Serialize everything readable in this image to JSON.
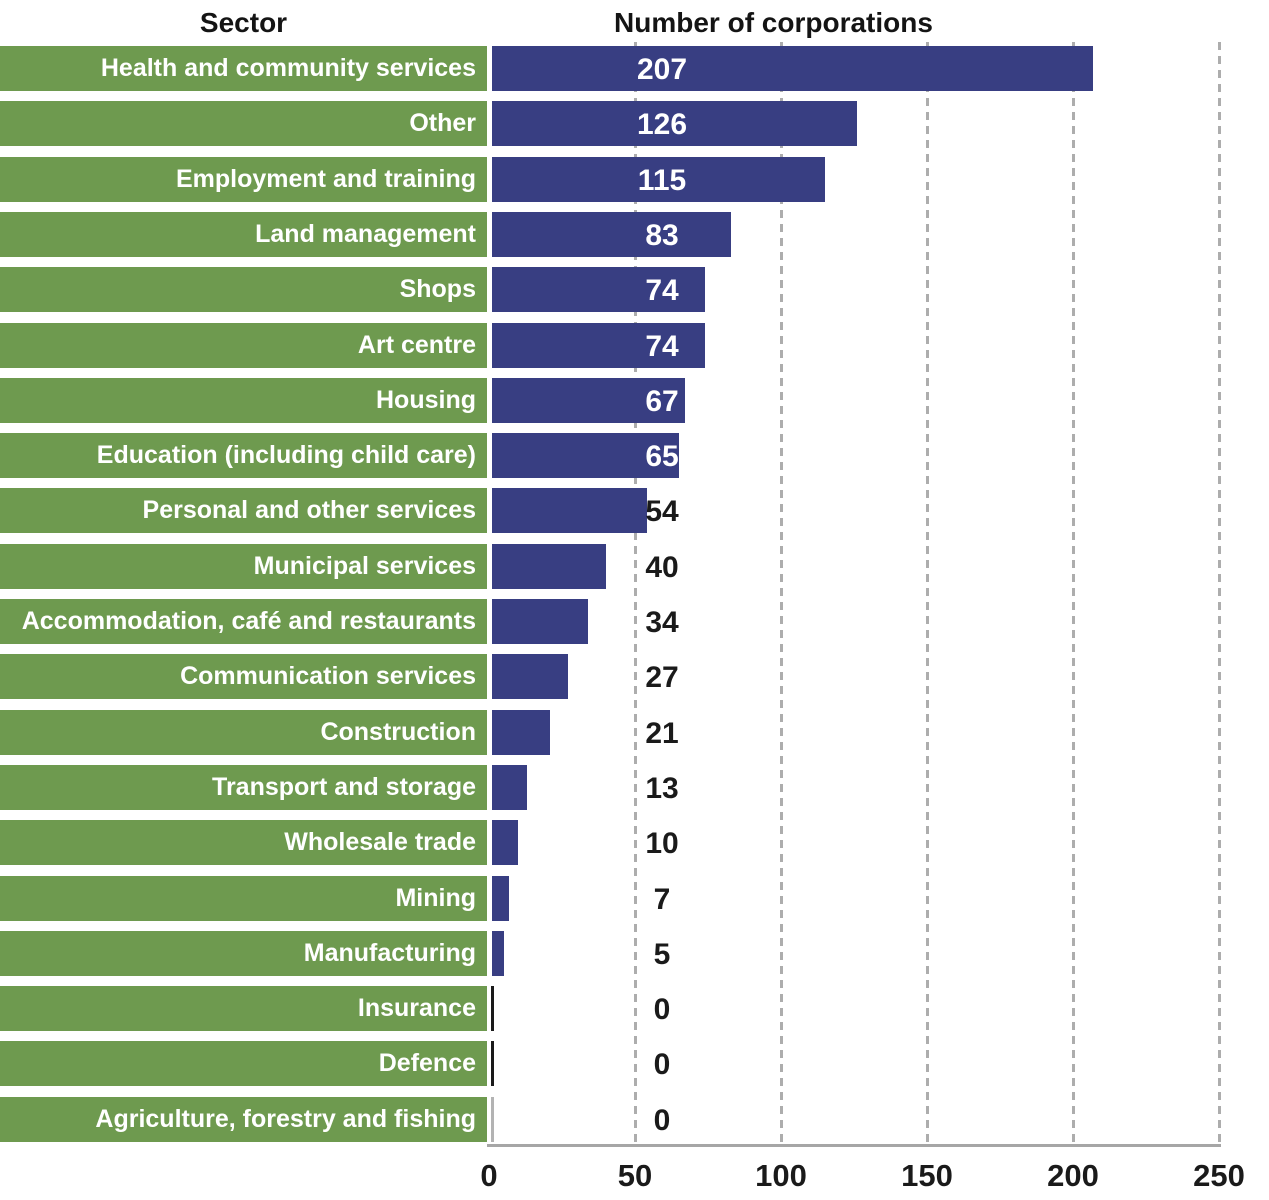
{
  "chart_data": {
    "type": "bar",
    "orientation": "horizontal",
    "column_headers": {
      "sector": "Sector",
      "values": "Number of corporations"
    },
    "xlabel": "",
    "ylabel": "",
    "xlim": [
      0,
      250
    ],
    "x_ticks": [
      0,
      50,
      100,
      150,
      200,
      250
    ],
    "grid": "vertical dashed gridlines at each tick except 0",
    "legend": "none",
    "rows": [
      {
        "label": "Health and community services",
        "value": 207
      },
      {
        "label": "Other",
        "value": 126
      },
      {
        "label": "Employment and training",
        "value": 115
      },
      {
        "label": "Land management",
        "value": 83
      },
      {
        "label": "Shops",
        "value": 74
      },
      {
        "label": "Art centre",
        "value": 74
      },
      {
        "label": "Housing",
        "value": 67
      },
      {
        "label": "Education (including child care)",
        "value": 65
      },
      {
        "label": "Personal and other services",
        "value": 54
      },
      {
        "label": "Municipal services",
        "value": 40
      },
      {
        "label": "Accommodation, café and restaurants",
        "value": 34
      },
      {
        "label": "Communication services",
        "value": 27
      },
      {
        "label": "Construction",
        "value": 21
      },
      {
        "label": "Transport and storage",
        "value": 13
      },
      {
        "label": "Wholesale trade",
        "value": 10
      },
      {
        "label": "Mining",
        "value": 7
      },
      {
        "label": "Manufacturing",
        "value": 5
      },
      {
        "label": "Insurance",
        "value": 0,
        "zero_line": "dark"
      },
      {
        "label": "Defence",
        "value": 0,
        "zero_line": "dark"
      },
      {
        "label": "Agriculture, forestry and fishing",
        "value": 0,
        "zero_line": "light"
      }
    ],
    "colors": {
      "category_bar": "#6e9a4f",
      "value_bar": "#383e82",
      "label_inside_bar": "#ffffff",
      "label_outside_bar": "#1a1a1a",
      "gridline": "#adadad",
      "axis_line": "#a6a6a6",
      "tick_label": "#1a1a1a",
      "zero_line_dark": "#1a1a1a",
      "zero_line_light": "#b3b3b3"
    }
  }
}
